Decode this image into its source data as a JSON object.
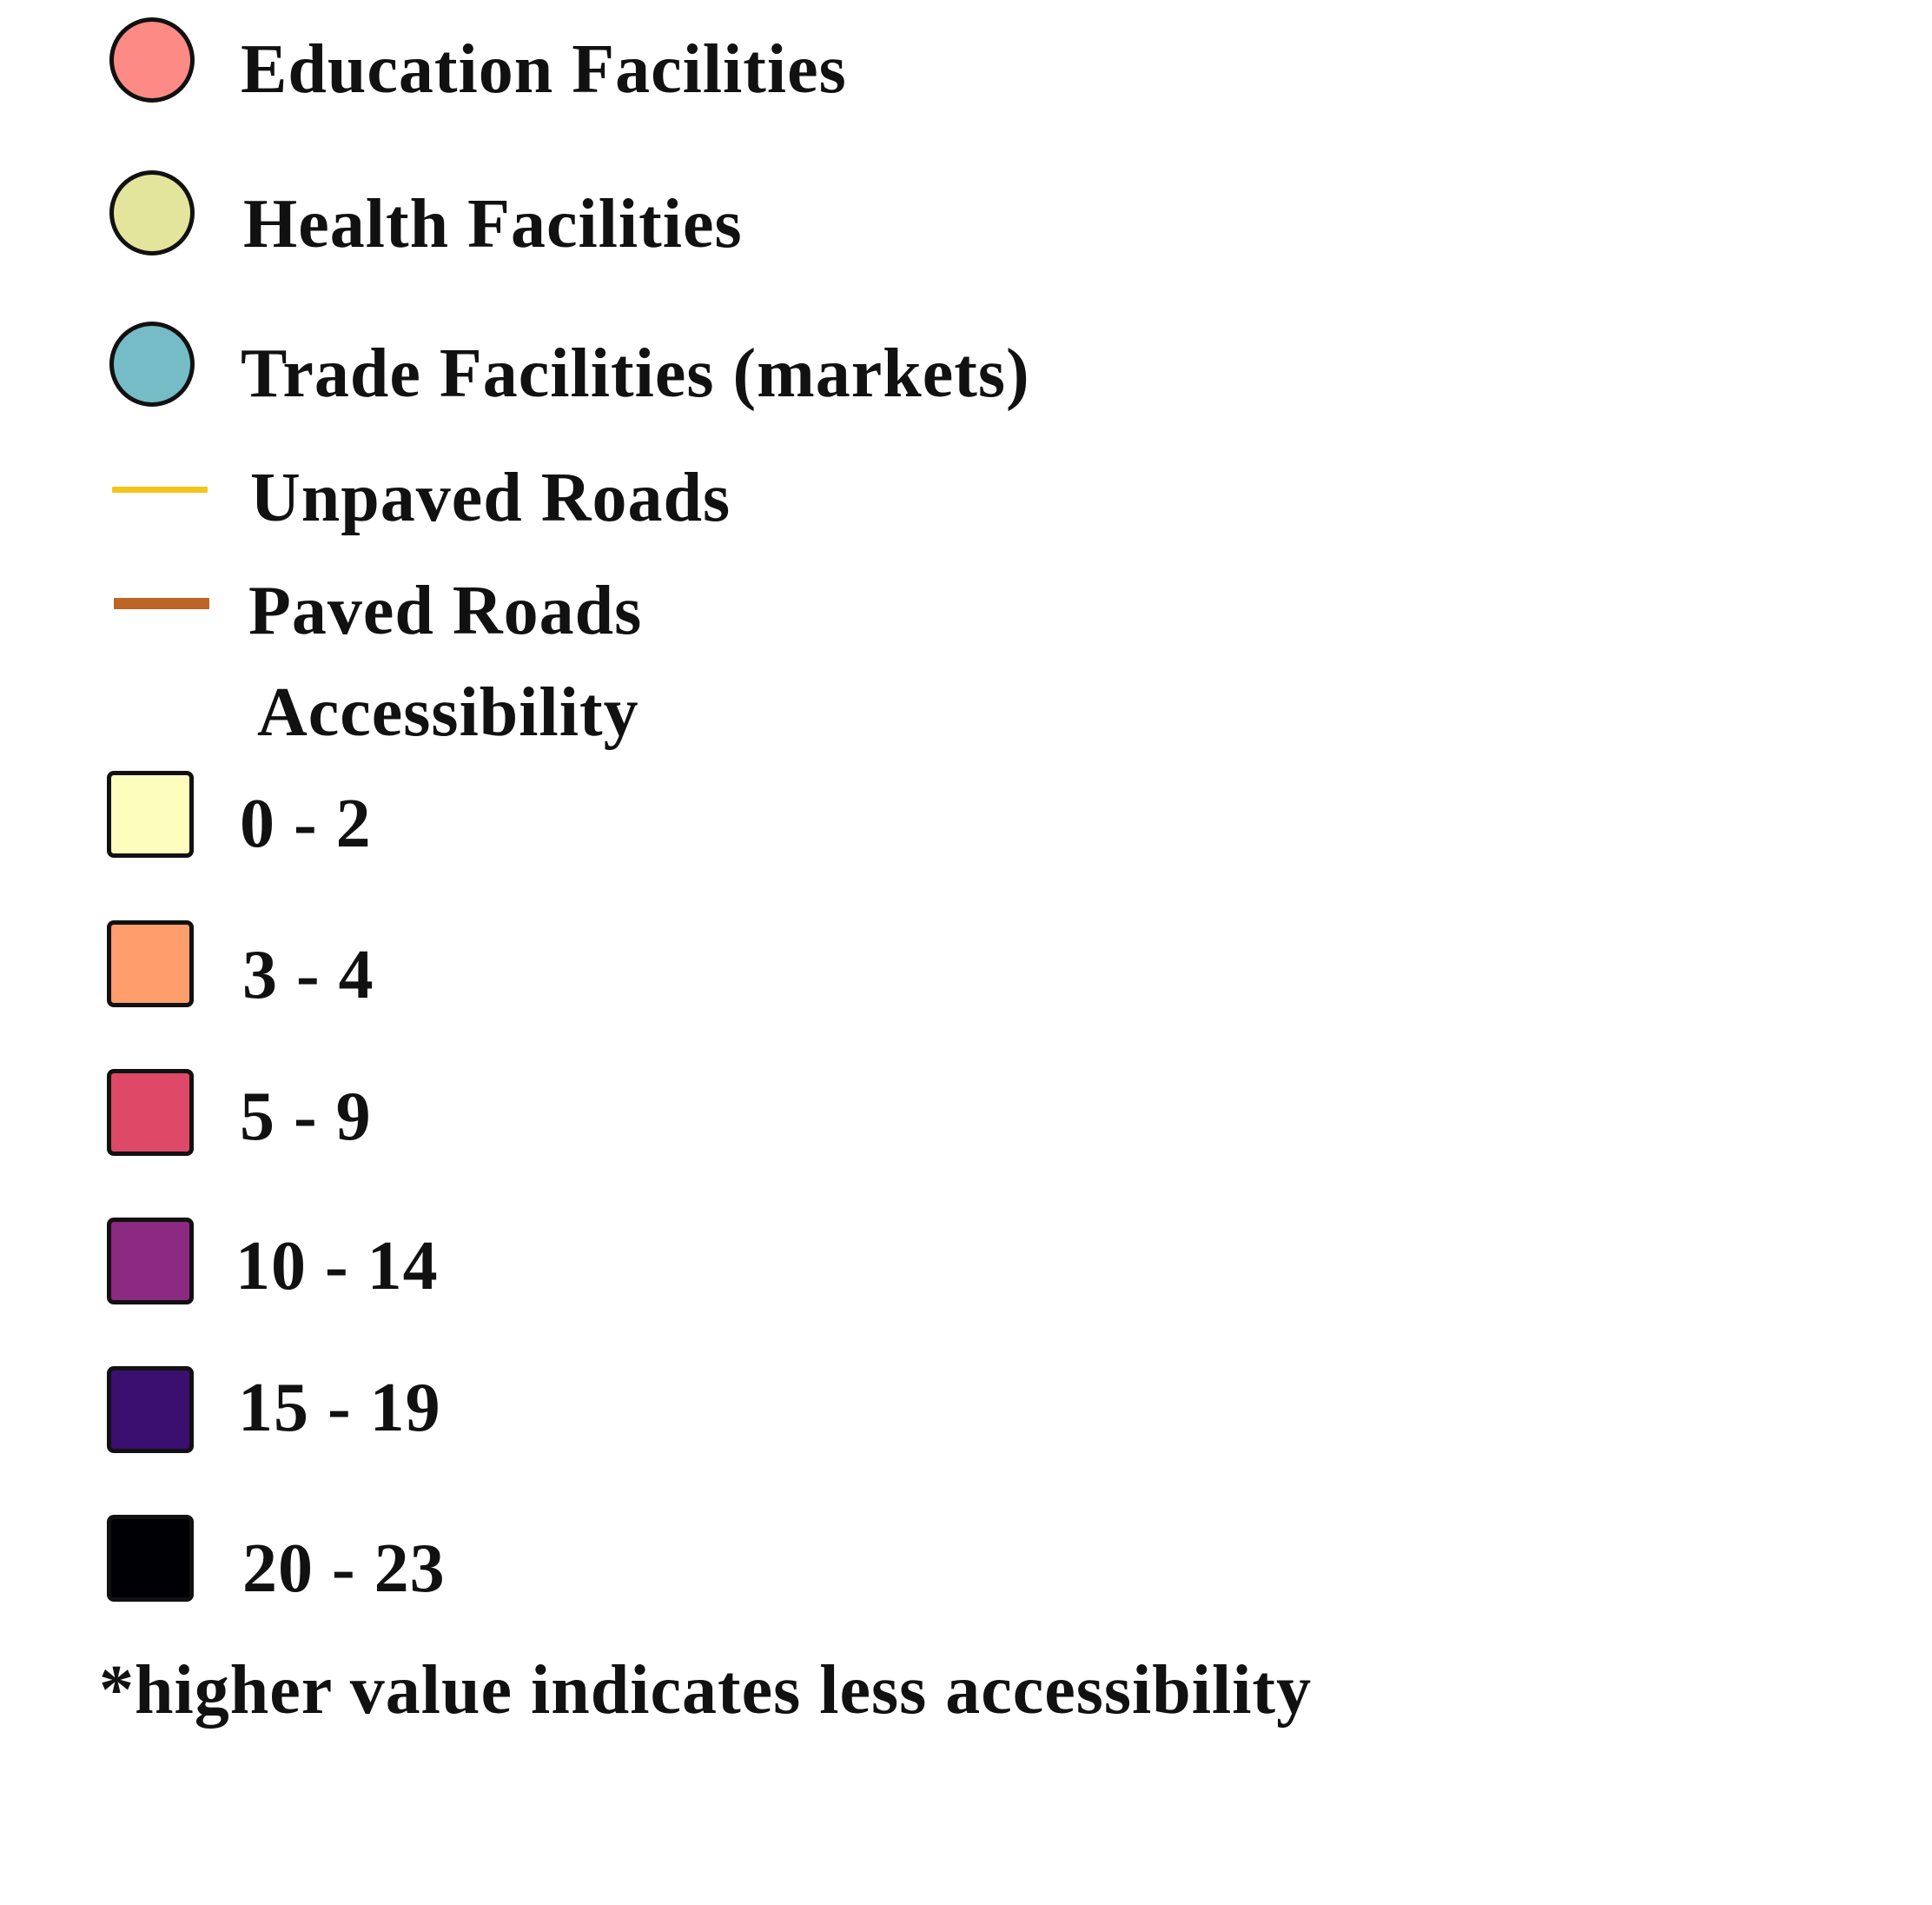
{
  "legend": {
    "facilities": [
      {
        "label": "Education Facilities",
        "color": "#fd8a84",
        "icon": "circle-symbol"
      },
      {
        "label": "Health Facilities",
        "color": "#e3e59d",
        "icon": "circle-symbol"
      },
      {
        "label": "Trade Facilities (markets)",
        "color": "#76bcc7",
        "icon": "circle-symbol"
      }
    ],
    "roads": [
      {
        "label": "Unpaved Roads",
        "color": "#f6c51b",
        "icon": "line-symbol"
      },
      {
        "label": "Paved Roads",
        "color": "#bc6527",
        "icon": "line-symbol"
      }
    ],
    "accessibility_title": "Accessibility",
    "accessibility_classes": [
      {
        "label": "0 - 2",
        "color": "#fdfdbe"
      },
      {
        "label": "3 - 4",
        "color": "#fe9e6d"
      },
      {
        "label": "5 - 9",
        "color": "#de4968"
      },
      {
        "label": "10 - 14",
        "color": "#8c2980"
      },
      {
        "label": "15 - 19",
        "color": "#3b0f70"
      },
      {
        "label": "20 - 23",
        "color": "#000004"
      }
    ],
    "footnote": "*higher value indicates less accessibility"
  }
}
